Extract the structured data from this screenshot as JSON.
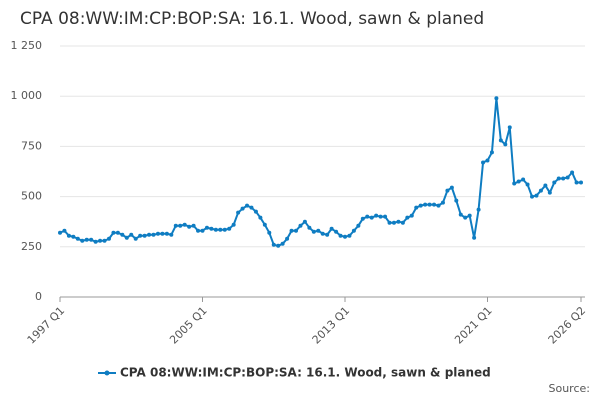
{
  "chart_data": {
    "type": "line",
    "title": "CPA 08:WW:IM:CP:BOP:SA: 16.1. Wood, sawn & planed",
    "source": "Source:",
    "categories": [
      "1997 Q1",
      null,
      null,
      null,
      null,
      null,
      null,
      null,
      null,
      null,
      null,
      null,
      null,
      null,
      null,
      null,
      null,
      null,
      null,
      null,
      null,
      null,
      null,
      null,
      null,
      null,
      null,
      null,
      null,
      null,
      null,
      null,
      "2005 Q1",
      null,
      null,
      null,
      null,
      null,
      null,
      null,
      null,
      null,
      null,
      null,
      null,
      null,
      null,
      null,
      null,
      null,
      null,
      null,
      null,
      null,
      null,
      null,
      null,
      null,
      null,
      null,
      null,
      null,
      null,
      null,
      "2013 Q1",
      null,
      null,
      null,
      null,
      null,
      null,
      null,
      null,
      null,
      null,
      null,
      null,
      null,
      null,
      null,
      null,
      null,
      null,
      null,
      null,
      null,
      null,
      null,
      null,
      null,
      null,
      null,
      null,
      null,
      null,
      null,
      "2021 Q1",
      null,
      null,
      null,
      null,
      null,
      null,
      null,
      null,
      null,
      null,
      null,
      null,
      null,
      null,
      null,
      null,
      null,
      null,
      null,
      null,
      "2026 Q2"
    ],
    "series": [
      {
        "name": "CPA 08:WW:IM:CP:BOP:SA: 16.1. Wood, sawn & planed",
        "color": "#0f7dc2",
        "values": [
          320,
          330,
          305,
          300,
          290,
          280,
          285,
          285,
          275,
          280,
          280,
          290,
          320,
          320,
          310,
          295,
          310,
          290,
          305,
          305,
          310,
          310,
          315,
          315,
          315,
          310,
          355,
          355,
          360,
          350,
          355,
          330,
          330,
          345,
          340,
          335,
          335,
          335,
          340,
          360,
          420,
          440,
          455,
          445,
          425,
          395,
          360,
          320,
          260,
          255,
          265,
          290,
          330,
          330,
          355,
          375,
          345,
          325,
          330,
          315,
          310,
          340,
          325,
          305,
          300,
          305,
          330,
          355,
          390,
          400,
          395,
          405,
          400,
          400,
          370,
          370,
          375,
          370,
          395,
          405,
          445,
          455,
          460,
          460,
          460,
          455,
          470,
          530,
          545,
          480,
          410,
          395,
          405,
          295,
          435,
          670,
          680,
          720,
          990,
          780,
          760,
          845,
          565,
          575,
          585,
          560,
          500,
          505,
          530,
          555,
          520,
          570,
          590,
          590,
          595,
          620,
          570,
          570
        ]
      }
    ],
    "ylim": [
      0,
      1250
    ],
    "yticks": [
      0,
      250,
      500,
      750,
      {
        "value": 1000,
        "label": "1 000"
      },
      {
        "value": 1250,
        "label": "1 250"
      }
    ],
    "grid": true
  }
}
